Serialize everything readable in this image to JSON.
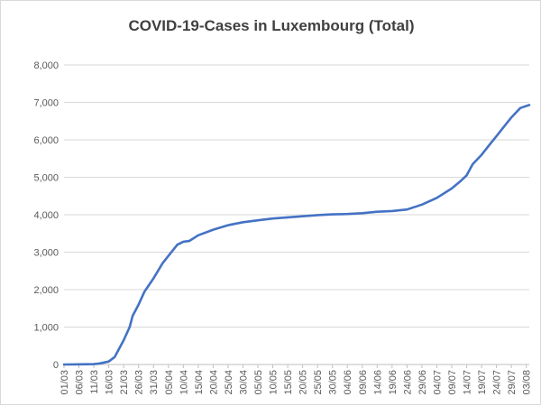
{
  "chart_data": {
    "type": "line",
    "title": "COVID-19-Cases in Luxembourg (Total)",
    "xlabel": "",
    "ylabel": "",
    "ylim": [
      0,
      8000
    ],
    "yticks": [
      "0",
      "1,000",
      "2,000",
      "3,000",
      "4,000",
      "5,000",
      "6,000",
      "7,000",
      "8,000"
    ],
    "x_tick_labels": [
      "01/03",
      "06/03",
      "11/03",
      "16/03",
      "21/03",
      "26/03",
      "31/03",
      "05/04",
      "10/04",
      "15/04",
      "20/04",
      "25/04",
      "30/04",
      "05/05",
      "10/05",
      "15/05",
      "20/05",
      "25/05",
      "30/05",
      "04/06",
      "09/06",
      "14/06",
      "19/06",
      "24/06",
      "29/06",
      "04/07",
      "09/07",
      "14/07",
      "19/07",
      "24/07",
      "29/07",
      "03/08"
    ],
    "grid": "horizontal",
    "line_color": "#4472C4",
    "series": [
      {
        "points": [
          [
            "01/03",
            0
          ],
          [
            "06/03",
            5
          ],
          [
            "11/03",
            10
          ],
          [
            "13/03",
            30
          ],
          [
            "16/03",
            80
          ],
          [
            "18/03",
            200
          ],
          [
            "19/03",
            350
          ],
          [
            "21/03",
            650
          ],
          [
            "23/03",
            1000
          ],
          [
            "24/03",
            1300
          ],
          [
            "26/03",
            1600
          ],
          [
            "28/03",
            1950
          ],
          [
            "31/03",
            2300
          ],
          [
            "03/04",
            2700
          ],
          [
            "05/04",
            2900
          ],
          [
            "08/04",
            3200
          ],
          [
            "10/04",
            3280
          ],
          [
            "12/04",
            3300
          ],
          [
            "15/04",
            3450
          ],
          [
            "20/04",
            3600
          ],
          [
            "25/04",
            3720
          ],
          [
            "30/04",
            3800
          ],
          [
            "05/05",
            3850
          ],
          [
            "10/05",
            3900
          ],
          [
            "15/05",
            3930
          ],
          [
            "20/05",
            3960
          ],
          [
            "25/05",
            3990
          ],
          [
            "30/05",
            4010
          ],
          [
            "04/06",
            4020
          ],
          [
            "09/06",
            4040
          ],
          [
            "14/06",
            4080
          ],
          [
            "19/06",
            4100
          ],
          [
            "24/06",
            4140
          ],
          [
            "29/06",
            4270
          ],
          [
            "04/07",
            4450
          ],
          [
            "09/07",
            4700
          ],
          [
            "12/07",
            4900
          ],
          [
            "14/07",
            5050
          ],
          [
            "16/07",
            5350
          ],
          [
            "19/07",
            5600
          ],
          [
            "22/07",
            5900
          ],
          [
            "24/07",
            6100
          ],
          [
            "26/07",
            6300
          ],
          [
            "29/07",
            6600
          ],
          [
            "01/08",
            6850
          ],
          [
            "04/08",
            6930
          ]
        ]
      }
    ]
  }
}
